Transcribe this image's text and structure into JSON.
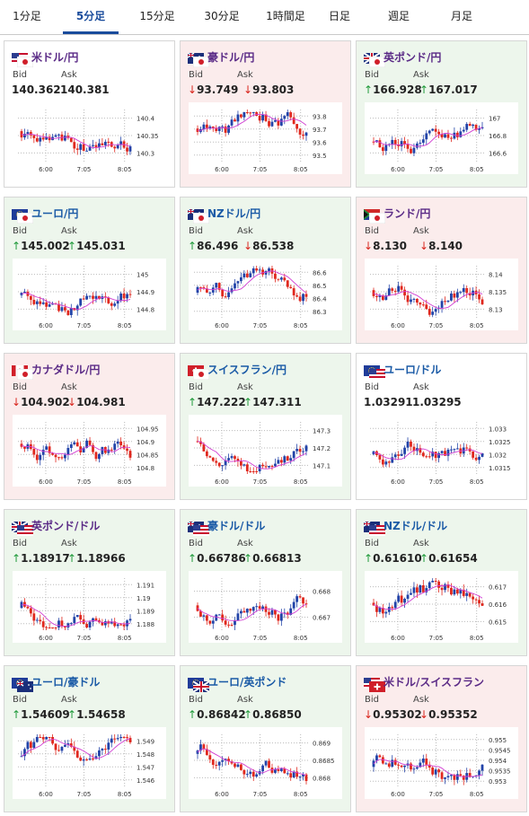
{
  "tabs": [
    {
      "label": "1分足",
      "active": false
    },
    {
      "label": "5分足",
      "active": true
    },
    {
      "label": "15分足",
      "active": false
    },
    {
      "label": "30分足",
      "active": false
    },
    {
      "label": "1時間足",
      "active": false
    },
    {
      "label": "日足",
      "active": false
    },
    {
      "label": "週足",
      "active": false
    },
    {
      "label": "月足",
      "active": false
    }
  ],
  "labels": {
    "bid": "Bid",
    "ask": "Ask"
  },
  "colors": {
    "up": "#1f9a3a",
    "down": "#d9251d",
    "title": "#1a5aa6",
    "candle_up": "#2243a8",
    "candle_down": "#e0281e",
    "ma": "#d23fd2"
  },
  "cards": [
    {
      "title": "米ドル/円",
      "bg": "white",
      "flags": [
        "flag-us",
        "flag-jp"
      ],
      "bid": "140.362",
      "ask": "140.381",
      "bid_dir": "",
      "ask_dir": "",
      "yticks": [
        "140.4",
        "140.35",
        "140.3"
      ],
      "xticks": [
        "6:00",
        "7:05",
        "8:05"
      ]
    },
    {
      "title": "豪ドル/円",
      "bg": "pink",
      "flags": [
        "flag-au",
        "flag-jp"
      ],
      "bid": "93.749",
      "ask": "93.803",
      "bid_dir": "down",
      "ask_dir": "down",
      "yticks": [
        "93.8",
        "93.7",
        "93.6",
        "93.5"
      ],
      "xticks": [
        "6:00",
        "7:05",
        "8:05"
      ]
    },
    {
      "title": "英ポンド/円",
      "bg": "green",
      "flags": [
        "flag-uk",
        "flag-jp"
      ],
      "bid": "166.928",
      "ask": "167.017",
      "bid_dir": "up",
      "ask_dir": "up",
      "yticks": [
        "167",
        "166.8",
        "166.6"
      ],
      "xticks": [
        "6:00",
        "7:05",
        "8:05"
      ]
    },
    {
      "title": "ユーロ/円",
      "bg": "green",
      "flags": [
        "flag-eu",
        "flag-jp"
      ],
      "bid": "145.002",
      "ask": "145.031",
      "bid_dir": "up",
      "ask_dir": "up",
      "yticks": [
        "145",
        "144.9",
        "144.8"
      ],
      "xticks": [
        "6:00",
        "7:05",
        "8:05"
      ]
    },
    {
      "title": "NZドル/円",
      "bg": "green",
      "flags": [
        "flag-nz",
        "flag-jp"
      ],
      "bid": "86.496",
      "ask": "86.538",
      "bid_dir": "up",
      "ask_dir": "down",
      "yticks": [
        "86.6",
        "86.5",
        "86.4",
        "86.3"
      ],
      "xticks": [
        "6:00",
        "7:05",
        "8:05"
      ]
    },
    {
      "title": "ランド/円",
      "bg": "pink",
      "flags": [
        "flag-za",
        "flag-jp"
      ],
      "bid": "8.130",
      "ask": "8.140",
      "bid_dir": "down",
      "ask_dir": "down",
      "yticks": [
        "8.14",
        "8.135",
        "8.13"
      ],
      "xticks": [
        "6:00",
        "7:05",
        "8:05"
      ]
    },
    {
      "title": "カナダドル/円",
      "bg": "pink",
      "flags": [
        "flag-ca",
        "flag-jp"
      ],
      "bid": "104.902",
      "ask": "104.981",
      "bid_dir": "down",
      "ask_dir": "down",
      "yticks": [
        "104.95",
        "104.9",
        "104.85",
        "104.8"
      ],
      "xticks": [
        "6:00",
        "7:05",
        "8:05"
      ]
    },
    {
      "title": "スイスフラン/円",
      "bg": "green",
      "flags": [
        "flag-ch",
        "flag-jp"
      ],
      "bid": "147.222",
      "ask": "147.311",
      "bid_dir": "up",
      "ask_dir": "up",
      "yticks": [
        "147.3",
        "147.2",
        "147.1"
      ],
      "xticks": [
        "6:00",
        "7:05",
        "8:05"
      ]
    },
    {
      "title": "ユーロ/ドル",
      "bg": "white",
      "flags": [
        "flag-eu",
        "flag-us"
      ],
      "bid": "1.03291",
      "ask": "1.03295",
      "bid_dir": "",
      "ask_dir": "",
      "yticks": [
        "1.033",
        "1.0325",
        "1.032",
        "1.0315"
      ],
      "xticks": [
        "6:00",
        "7:05",
        "8:05"
      ]
    },
    {
      "title": "英ポンド/ドル",
      "bg": "green",
      "flags": [
        "flag-uk",
        "flag-us"
      ],
      "bid": "1.18917",
      "ask": "1.18966",
      "bid_dir": "up",
      "ask_dir": "up",
      "yticks": [
        "1.191",
        "1.19",
        "1.189",
        "1.188"
      ],
      "xticks": [
        "6:00",
        "7:05",
        "8:05"
      ]
    },
    {
      "title": "豪ドル/ドル",
      "bg": "green",
      "flags": [
        "flag-au",
        "flag-us"
      ],
      "bid": "0.66786",
      "ask": "0.66813",
      "bid_dir": "up",
      "ask_dir": "up",
      "yticks": [
        "0.668",
        "0.667"
      ],
      "xticks": [
        "6:00",
        "7:05",
        "8:05"
      ]
    },
    {
      "title": "NZドル/ドル",
      "bg": "green",
      "flags": [
        "flag-nz",
        "flag-us"
      ],
      "bid": "0.61610",
      "ask": "0.61654",
      "bid_dir": "up",
      "ask_dir": "up",
      "yticks": [
        "0.617",
        "0.616",
        "0.615"
      ],
      "xticks": [
        "6:00",
        "7:05",
        "8:05"
      ]
    },
    {
      "title": "ユーロ/豪ドル",
      "bg": "green",
      "flags": [
        "flag-eu",
        "flag-au"
      ],
      "bid": "1.54609",
      "ask": "1.54658",
      "bid_dir": "up",
      "ask_dir": "up",
      "yticks": [
        "1.549",
        "1.548",
        "1.547",
        "1.546"
      ],
      "xticks": [
        "6:00",
        "7:05",
        "8:05"
      ]
    },
    {
      "title": "ユーロ/英ポンド",
      "bg": "green",
      "flags": [
        "flag-eu",
        "flag-uk"
      ],
      "bid": "0.86842",
      "ask": "0.86850",
      "bid_dir": "up",
      "ask_dir": "up",
      "yticks": [
        "0.869",
        "0.8685",
        "0.868"
      ],
      "xticks": [
        "6:00",
        "7:05",
        "8:05"
      ]
    },
    {
      "title": "米ドル/スイスフラン",
      "bg": "pink",
      "flags": [
        "flag-us",
        "flag-ch"
      ],
      "bid": "0.95302",
      "ask": "0.95352",
      "bid_dir": "down",
      "ask_dir": "down",
      "yticks": [
        "0.955",
        "0.9545",
        "0.954",
        "0.9535",
        "0.953"
      ],
      "xticks": [
        "6:00",
        "7:05",
        "8:05"
      ]
    }
  ]
}
